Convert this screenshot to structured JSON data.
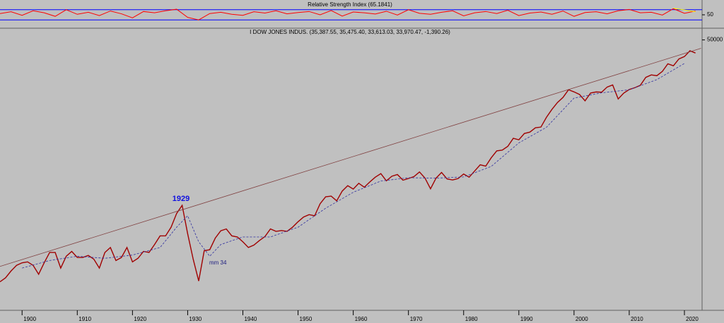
{
  "chart_data": [
    {
      "type": "line",
      "title": "Relative Strength Index (65.1841)",
      "xlim": [
        1896,
        2023.2
      ],
      "ylim": [
        0,
        100
      ],
      "yticks": [
        50
      ],
      "levels": [
        70,
        30
      ],
      "level_color": "#0000ff",
      "series": [
        {
          "color": "#ff0000",
          "x": [
            1896,
            1898,
            1900,
            1902,
            1904,
            1906,
            1908,
            1910,
            1912,
            1914,
            1916,
            1918,
            1920,
            1922,
            1924,
            1926,
            1928,
            1930,
            1932,
            1934,
            1936,
            1938,
            1940,
            1942,
            1944,
            1946,
            1948,
            1950,
            1952,
            1954,
            1956,
            1958,
            1960,
            1962,
            1964,
            1966,
            1968,
            1970,
            1972,
            1974,
            1976,
            1978,
            1980,
            1982,
            1984,
            1986,
            1988,
            1990,
            1992,
            1994,
            1996,
            1998,
            2000,
            2002,
            2004,
            2006,
            2008,
            2010,
            2012,
            2014,
            2016,
            2018,
            2020,
            2022
          ],
          "values": [
            55,
            62,
            48,
            66,
            58,
            44,
            70,
            52,
            60,
            47,
            65,
            54,
            38,
            63,
            58,
            66,
            72,
            40,
            30,
            55,
            60,
            52,
            48,
            62,
            57,
            66,
            54,
            59,
            63,
            50,
            67,
            45,
            61,
            58,
            53,
            64,
            49,
            70,
            56,
            52,
            60,
            66,
            46,
            58,
            63,
            55,
            68,
            47,
            57,
            61,
            52,
            65,
            44,
            59,
            62,
            54,
            66,
            71,
            58,
            60,
            49,
            74,
            56,
            65
          ]
        },
        {
          "color": "#ffff00",
          "x": [
            2018,
            2022
          ],
          "values": [
            76,
            62
          ]
        }
      ]
    },
    {
      "type": "line",
      "title": "I DOW JONES INDUS. (35,387.55, 35,475.40, 33,613.03, 33,970.47, -1,390.26)",
      "log_scale": true,
      "xlim": [
        1896,
        2023.2
      ],
      "ylim": [
        18,
        55000
      ],
      "yticks": [
        50000
      ],
      "xticks": [
        1900,
        1910,
        1920,
        1930,
        1940,
        1950,
        1960,
        1970,
        1980,
        1990,
        2000,
        2010,
        2020
      ],
      "annotations": [
        "1929",
        "mm 34"
      ],
      "series": [
        {
          "color": "#a00000",
          "width": 1.4,
          "x": [
            1896,
            1897,
            1898,
            1899,
            1900,
            1901,
            1902,
            1903,
            1904,
            1905,
            1906,
            1907,
            1908,
            1909,
            1910,
            1911,
            1912,
            1913,
            1914,
            1915,
            1916,
            1917,
            1918,
            1919,
            1920,
            1921,
            1922,
            1923,
            1924,
            1925,
            1926,
            1927,
            1928,
            1929,
            1930,
            1931,
            1932,
            1933,
            1934,
            1935,
            1936,
            1937,
            1938,
            1939,
            1940,
            1941,
            1942,
            1943,
            1944,
            1945,
            1946,
            1947,
            1948,
            1949,
            1950,
            1951,
            1952,
            1953,
            1954,
            1955,
            1956,
            1957,
            1958,
            1959,
            1960,
            1961,
            1962,
            1963,
            1964,
            1965,
            1966,
            1967,
            1968,
            1969,
            1970,
            1971,
            1972,
            1973,
            1974,
            1975,
            1976,
            1977,
            1978,
            1979,
            1980,
            1981,
            1982,
            1983,
            1984,
            1985,
            1986,
            1987,
            1988,
            1989,
            1990,
            1991,
            1992,
            1993,
            1994,
            1995,
            1996,
            1997,
            1998,
            1999,
            2000,
            2001,
            2002,
            2003,
            2004,
            2005,
            2006,
            2007,
            2008,
            2009,
            2010,
            2011,
            2012,
            2013,
            2014,
            2015,
            2016,
            2017,
            2018,
            2019,
            2020,
            2021,
            2022
          ],
          "values": [
            40,
            45,
            55,
            65,
            70,
            72,
            65,
            50,
            70,
            95,
            95,
            60,
            85,
            98,
            82,
            82,
            87,
            78,
            60,
            95,
            110,
            75,
            82,
            110,
            72,
            80,
            98,
            95,
            120,
            155,
            155,
            200,
            300,
            381,
            165,
            78,
            41,
            100,
            103,
            145,
            180,
            190,
            155,
            150,
            130,
            110,
            118,
            135,
            152,
            190,
            177,
            181,
            177,
            200,
            235,
            270,
            290,
            280,
            400,
            490,
            500,
            435,
            580,
            680,
            615,
            730,
            650,
            760,
            875,
            970,
            785,
            900,
            945,
            800,
            840,
            890,
            1020,
            850,
            620,
            850,
            1005,
            830,
            805,
            840,
            960,
            875,
            1050,
            1260,
            1210,
            1550,
            1900,
            1940,
            2170,
            2750,
            2630,
            3170,
            3300,
            3750,
            3830,
            5100,
            6450,
            7900,
            9180,
            11500,
            10800,
            10000,
            8300,
            10450,
            10780,
            10700,
            12460,
            13260,
            8770,
            10430,
            11580,
            12220,
            13100,
            16580,
            17820,
            17400,
            19760,
            24700,
            23300,
            28500,
            30600,
            36300,
            33970
          ]
        },
        {
          "color": "#3030a0",
          "dashed": true,
          "width": 0.8,
          "x": [
            1900,
            1905,
            1910,
            1915,
            1920,
            1925,
            1928,
            1930,
            1932,
            1934,
            1936,
            1940,
            1945,
            1950,
            1955,
            1960,
            1965,
            1970,
            1975,
            1980,
            1985,
            1990,
            1995,
            2000,
            2005,
            2010,
            2015,
            2020
          ],
          "values": [
            60,
            75,
            85,
            80,
            88,
            110,
            200,
            280,
            130,
            85,
            120,
            150,
            150,
            200,
            350,
            560,
            780,
            860,
            850,
            880,
            1200,
            2400,
            3800,
            9000,
            10500,
            11500,
            15500,
            25000
          ]
        },
        {
          "color": "#804040",
          "width": 0.8,
          "x": [
            1896,
            2023
          ],
          "values": [
            63,
            39000
          ]
        }
      ]
    }
  ]
}
